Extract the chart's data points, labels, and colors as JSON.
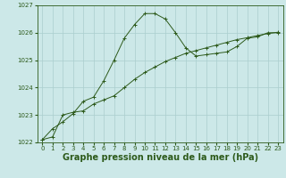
{
  "x": [
    0,
    1,
    2,
    3,
    4,
    5,
    6,
    7,
    8,
    9,
    10,
    11,
    12,
    13,
    14,
    15,
    16,
    17,
    18,
    19,
    20,
    21,
    22,
    23
  ],
  "y_main": [
    1022.1,
    1022.5,
    1022.75,
    1023.05,
    1023.5,
    1023.65,
    1024.25,
    1025.0,
    1025.8,
    1026.3,
    1026.7,
    1026.7,
    1026.5,
    1026.0,
    1025.45,
    1025.15,
    1025.2,
    1025.25,
    1025.3,
    1025.5,
    1025.8,
    1025.85,
    1026.0,
    1026.0
  ],
  "y_trend": [
    1022.1,
    1022.2,
    1023.0,
    1023.1,
    1023.15,
    1023.4,
    1023.55,
    1023.7,
    1024.0,
    1024.3,
    1024.55,
    1024.75,
    1024.95,
    1025.1,
    1025.25,
    1025.35,
    1025.45,
    1025.55,
    1025.65,
    1025.75,
    1025.82,
    1025.9,
    1025.97,
    1026.02
  ],
  "ylim": [
    1022.0,
    1027.0
  ],
  "xlim": [
    -0.5,
    23.5
  ],
  "yticks": [
    1022,
    1023,
    1024,
    1025,
    1026,
    1027
  ],
  "xticks": [
    0,
    1,
    2,
    3,
    4,
    5,
    6,
    7,
    8,
    9,
    10,
    11,
    12,
    13,
    14,
    15,
    16,
    17,
    18,
    19,
    20,
    21,
    22,
    23
  ],
  "xlabel": "Graphe pression niveau de la mer (hPa)",
  "line_color": "#2d5a1b",
  "bg_color": "#cce8e8",
  "grid_color": "#aacece",
  "tick_fontsize": 5.0,
  "xlabel_fontsize": 7.0,
  "marker": "+"
}
